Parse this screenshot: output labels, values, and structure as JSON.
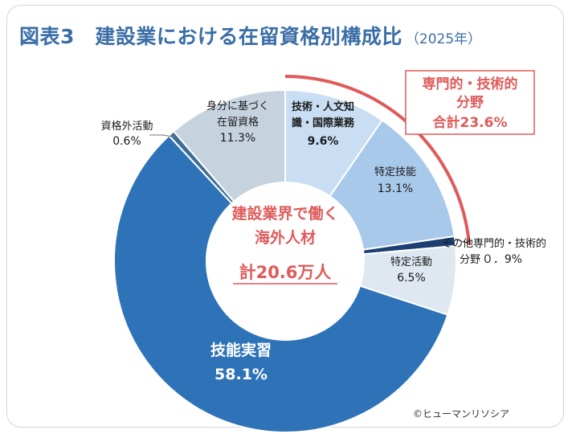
{
  "header": {
    "title": "図表3　建設業における在留資格別構成比",
    "year": "（2025年）"
  },
  "center": {
    "line1": "建設業界で働く",
    "line2": "海外人材",
    "total": "計20.6万人"
  },
  "group": {
    "line1": "専門的・技術的",
    "line2": "分野",
    "line3": "合計23.6%",
    "value": 23.6
  },
  "credit": "©ヒューマンリソシア",
  "colors": {
    "title": "#3a6ea6",
    "red": "#e05a5a",
    "dark_blue": "#2e73b8",
    "light_blue": "#c9def3",
    "mid_blue": "#a9c9ea",
    "navy": "#1c3f73",
    "pale": "#dfe8f1",
    "gray_blue": "#c6d2de",
    "steel": "#3d6f96"
  },
  "chart_data": {
    "type": "pie",
    "donut": true,
    "title": "建設業における在留資格別構成比（2025年）",
    "unit": "%",
    "segments": [
      {
        "name": "技術・人文知識・国際業務",
        "label_lines": [
          "技術・人文知",
          "識・国際業務"
        ],
        "pct_label": "9.6%",
        "value": 9.6,
        "color": "#c9def3"
      },
      {
        "name": "特定技能",
        "label_lines": [
          "特定技能"
        ],
        "pct_label": "13.1%",
        "value": 13.1,
        "color": "#a9c9ea"
      },
      {
        "name": "その他専門的・技術的分野",
        "label_lines": [
          "その他専門的・技術的",
          "分野"
        ],
        "pct_label": "０．9%",
        "value": 0.9,
        "color": "#1c3f73"
      },
      {
        "name": "特定活動",
        "label_lines": [
          "特定活動"
        ],
        "pct_label": "6.5%",
        "value": 6.5,
        "color": "#dfe8f1"
      },
      {
        "name": "技能実習",
        "label_lines": [
          "技能実習"
        ],
        "pct_label": "58.1%",
        "value": 58.1,
        "color": "#2e73b8"
      },
      {
        "name": "資格外活動",
        "label_lines": [
          "資格外活動"
        ],
        "pct_label": "0.6%",
        "value": 0.6,
        "color": "#3d6f96"
      },
      {
        "name": "身分に基づく在留資格",
        "label_lines": [
          "身分に基づく",
          "在留資格"
        ],
        "pct_label": "11.3%",
        "value": 11.3,
        "color": "#c6d2de"
      }
    ]
  }
}
